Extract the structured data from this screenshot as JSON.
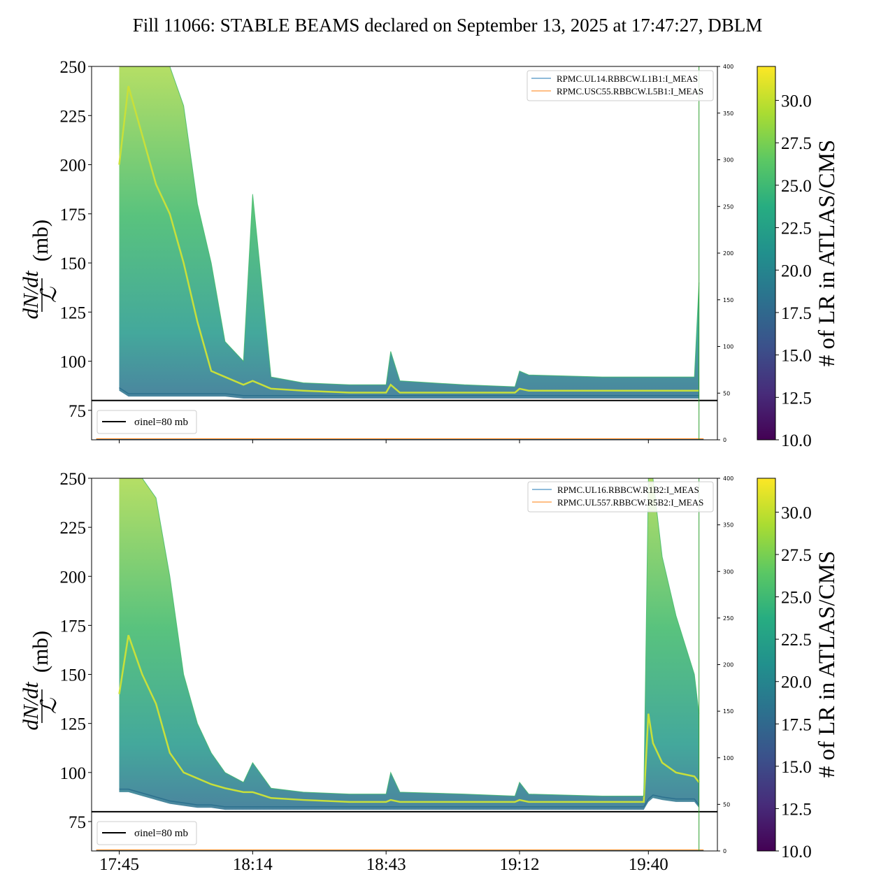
{
  "suptitle": "Fill 11066: STABLE BEAMS declared on September 13, 2025 at 17:47:27, DBLM",
  "colors": {
    "series_blue": "#1f77b4",
    "series_orange": "#ff7f0e",
    "reference": "#000000",
    "marker": "#2ca02c"
  },
  "colorbar": {
    "label": "# of LR in ATLAS/CMS",
    "range": [
      10.0,
      32.0
    ],
    "ticks": [
      "10.0",
      "12.5",
      "15.0",
      "17.5",
      "20.0",
      "22.5",
      "25.0",
      "27.5",
      "30.0"
    ],
    "colormap": "viridis"
  },
  "reference_legend": "σinel=80 mb",
  "chart_data": [
    {
      "type": "line",
      "panel": "top",
      "ylabel": "dN/dt / ℒ (mb)",
      "ylim": [
        60,
        250
      ],
      "yticks": [
        75,
        100,
        125,
        150,
        175,
        200,
        225,
        250
      ],
      "y2lim": [
        0,
        400
      ],
      "y2ticks": [
        0,
        50,
        100,
        150,
        200,
        250,
        300,
        350,
        400
      ],
      "xlim": [
        "17:39",
        "19:55"
      ],
      "xticks": [
        "17:45",
        "18:14",
        "18:43",
        "19:12",
        "19:40"
      ],
      "reference_line": {
        "y": 80,
        "label": "σinel=80 mb"
      },
      "vertical_marker": {
        "x": "19:51"
      },
      "legend_position": "top-right",
      "series": [
        {
          "name": "RPMC.UL14.RBBCW.L1B1:I_MEAS",
          "color": "#1f77b4"
        },
        {
          "name": "RPMC.USC55.RBBCW.L5B1:I_MEAS",
          "color": "#ff7f0e"
        }
      ],
      "envelope": {
        "x": [
          "17:45",
          "17:47",
          "17:50",
          "17:53",
          "17:56",
          "17:59",
          "18:02",
          "18:05",
          "18:08",
          "18:12",
          "18:14",
          "18:18",
          "18:25",
          "18:35",
          "18:43",
          "18:44",
          "18:46",
          "19:00",
          "19:11",
          "19:12",
          "19:14",
          "19:30",
          "19:40",
          "19:50",
          "19:51"
        ],
        "mean": [
          200,
          240,
          215,
          190,
          175,
          150,
          120,
          95,
          92,
          88,
          90,
          86,
          85,
          84,
          84,
          88,
          84,
          84,
          84,
          86,
          85,
          85,
          85,
          85,
          85
        ],
        "high": [
          250,
          250,
          250,
          250,
          250,
          230,
          180,
          150,
          110,
          100,
          185,
          92,
          89,
          88,
          88,
          105,
          90,
          88,
          87,
          95,
          93,
          92,
          92,
          92,
          140
        ],
        "low": [
          85,
          82,
          82,
          82,
          82,
          82,
          82,
          82,
          82,
          81,
          81,
          81,
          81,
          81,
          81,
          81,
          81,
          81,
          81,
          81,
          81,
          81,
          81,
          81,
          81
        ]
      }
    },
    {
      "type": "line",
      "panel": "bottom",
      "ylabel": "dN/dt / ℒ (mb)",
      "ylim": [
        60,
        250
      ],
      "yticks": [
        75,
        100,
        125,
        150,
        175,
        200,
        225,
        250
      ],
      "y2lim": [
        0,
        400
      ],
      "y2ticks": [
        0,
        50,
        100,
        150,
        200,
        250,
        300,
        350,
        400
      ],
      "xlim": [
        "17:39",
        "19:55"
      ],
      "xticks": [
        "17:45",
        "18:14",
        "18:43",
        "19:12",
        "19:40"
      ],
      "reference_line": {
        "y": 80,
        "label": "σinel=80 mb"
      },
      "vertical_marker": {
        "x": "19:51"
      },
      "legend_position": "top-right",
      "series": [
        {
          "name": "RPMC.UL16.RBBCW.R1B2:I_MEAS",
          "color": "#1f77b4"
        },
        {
          "name": "RPMC.UL557.RBBCW.R5B2:I_MEAS",
          "color": "#ff7f0e"
        }
      ],
      "envelope": {
        "x": [
          "17:45",
          "17:47",
          "17:50",
          "17:53",
          "17:56",
          "17:59",
          "18:02",
          "18:05",
          "18:08",
          "18:12",
          "18:14",
          "18:18",
          "18:25",
          "18:35",
          "18:43",
          "18:44",
          "18:46",
          "19:00",
          "19:11",
          "19:12",
          "19:14",
          "19:30",
          "19:39",
          "19:40",
          "19:41",
          "19:43",
          "19:46",
          "19:50",
          "19:51"
        ],
        "mean": [
          140,
          170,
          150,
          135,
          110,
          100,
          97,
          94,
          92,
          90,
          90,
          87,
          86,
          85,
          85,
          86,
          85,
          85,
          85,
          86,
          85,
          85,
          85,
          130,
          115,
          105,
          100,
          98,
          95
        ],
        "high": [
          250,
          250,
          250,
          240,
          200,
          150,
          125,
          110,
          100,
          95,
          105,
          92,
          90,
          89,
          89,
          100,
          90,
          89,
          88,
          95,
          89,
          88,
          88,
          250,
          250,
          210,
          180,
          150,
          130
        ],
        "low": [
          90,
          90,
          88,
          86,
          84,
          83,
          82,
          82,
          81,
          81,
          81,
          81,
          81,
          81,
          81,
          81,
          81,
          81,
          81,
          81,
          81,
          81,
          81,
          85,
          87,
          86,
          85,
          85,
          82
        ]
      }
    }
  ]
}
